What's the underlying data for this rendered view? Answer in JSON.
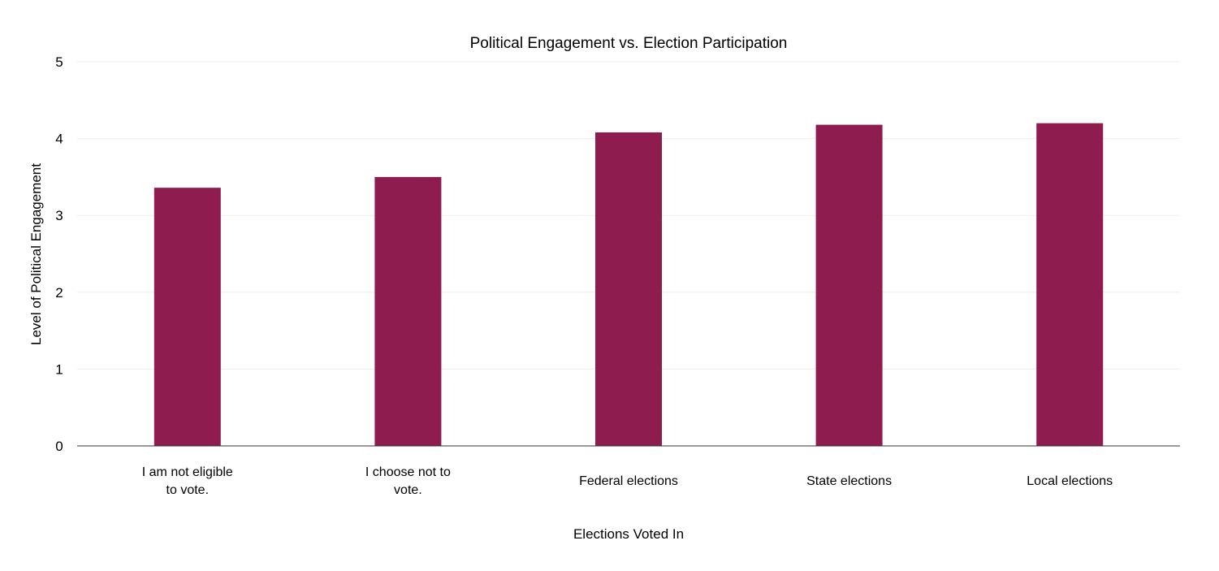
{
  "chart_data": {
    "type": "bar",
    "title": "Political Engagement vs. Election Participation",
    "xlabel": "Elections Voted In",
    "ylabel": "Level of Political Engagement",
    "categories": [
      [
        "I am not eligible",
        "to vote."
      ],
      [
        "I choose not to",
        "vote."
      ],
      [
        "Federal elections"
      ],
      [
        "State elections"
      ],
      [
        "Local elections"
      ]
    ],
    "values": [
      3.36,
      3.5,
      4.08,
      4.18,
      4.2
    ],
    "ylim": [
      0,
      5
    ],
    "yticks": [
      0,
      1,
      2,
      3,
      4,
      5
    ],
    "grid": true,
    "legend": "none",
    "colors": {
      "bar": "#8f1c4f",
      "grid": "#eeeeee",
      "axis": "#333333"
    }
  }
}
